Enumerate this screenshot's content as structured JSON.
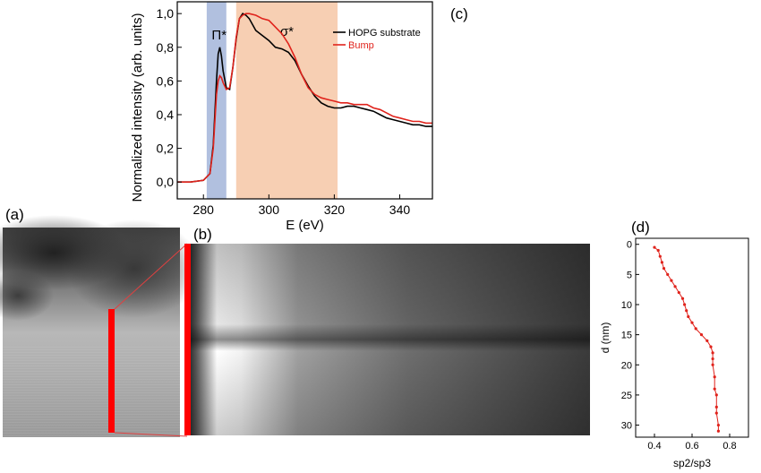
{
  "panels": {
    "a": "(a)",
    "b": "(b)",
    "c": "(c)",
    "d": "(d)"
  },
  "colors": {
    "hopg": "#000000",
    "bump": "#e0231c",
    "pi_band": "#a8b9dc",
    "sigma_band": "#f6c7a6",
    "marker": "#ff0000"
  },
  "chart_data": [
    {
      "type": "line",
      "xlabel": "E (eV)",
      "ylabel": "Normalized intensity (arb. units)",
      "xlim": [
        272,
        350
      ],
      "ylim": [
        -0.1,
        1.07
      ],
      "xticks": [
        "280",
        "300",
        "320",
        "340"
      ],
      "yticks": [
        "0,0",
        "0,2",
        "0,4",
        "0,6",
        "0,8",
        "1,0"
      ],
      "x_tick_values": [
        280,
        300,
        320,
        340
      ],
      "y_tick_values": [
        0,
        0.2,
        0.4,
        0.6,
        0.8,
        1.0
      ],
      "legend_position": "top-right",
      "bands": [
        {
          "label": "Π*",
          "range": [
            281,
            287
          ]
        },
        {
          "label": "σ*",
          "range": [
            290,
            321
          ]
        }
      ],
      "series": [
        {
          "name": "HOPG substrate",
          "x": [
            272,
            276,
            280,
            282,
            283,
            284,
            284.5,
            285,
            285.5,
            286,
            287,
            288,
            289,
            290,
            291,
            292,
            293,
            294,
            296,
            298,
            300,
            302,
            304,
            306,
            308,
            310,
            312,
            314,
            316,
            318,
            320,
            322,
            324,
            326,
            328,
            330,
            332,
            334,
            336,
            338,
            340,
            342,
            344,
            346,
            348,
            350
          ],
          "y": [
            0.0,
            0.0,
            0.01,
            0.05,
            0.22,
            0.6,
            0.76,
            0.8,
            0.75,
            0.66,
            0.56,
            0.55,
            0.68,
            0.85,
            0.97,
            1.0,
            0.99,
            0.97,
            0.9,
            0.87,
            0.84,
            0.8,
            0.79,
            0.77,
            0.72,
            0.64,
            0.57,
            0.51,
            0.47,
            0.45,
            0.44,
            0.44,
            0.45,
            0.45,
            0.44,
            0.43,
            0.42,
            0.4,
            0.38,
            0.37,
            0.36,
            0.35,
            0.34,
            0.34,
            0.33,
            0.33
          ]
        },
        {
          "name": "Bump",
          "x": [
            272,
            276,
            280,
            282,
            283,
            284,
            284.5,
            285,
            285.5,
            286,
            287,
            288,
            289,
            290,
            291,
            292,
            293,
            294,
            296,
            298,
            300,
            302,
            304,
            306,
            308,
            310,
            312,
            314,
            316,
            318,
            320,
            322,
            324,
            326,
            328,
            330,
            332,
            334,
            336,
            338,
            340,
            342,
            344,
            346,
            348,
            350
          ],
          "y": [
            0.0,
            0.0,
            0.01,
            0.05,
            0.2,
            0.52,
            0.6,
            0.63,
            0.62,
            0.59,
            0.55,
            0.56,
            0.68,
            0.86,
            0.97,
            0.99,
            1.0,
            1.0,
            0.99,
            0.97,
            0.96,
            0.92,
            0.88,
            0.82,
            0.74,
            0.64,
            0.56,
            0.52,
            0.5,
            0.49,
            0.48,
            0.47,
            0.47,
            0.46,
            0.46,
            0.46,
            0.44,
            0.43,
            0.41,
            0.39,
            0.38,
            0.37,
            0.36,
            0.36,
            0.35,
            0.35
          ]
        }
      ]
    },
    {
      "type": "scatter",
      "xlabel": "sp2/sp3",
      "ylabel": "d (nm)",
      "xlim": [
        0.3,
        0.9
      ],
      "ylim": [
        32,
        -1
      ],
      "xticks": [
        "0.4",
        "0.6",
        "0.8"
      ],
      "yticks": [
        "0",
        "5",
        "10",
        "15",
        "20",
        "25",
        "30"
      ],
      "x_tick_values": [
        0.4,
        0.6,
        0.8
      ],
      "y_tick_values": [
        0,
        5,
        10,
        15,
        20,
        25,
        30
      ],
      "series": [
        {
          "name": "",
          "x": [
            0.4,
            0.42,
            0.43,
            0.44,
            0.45,
            0.47,
            0.49,
            0.51,
            0.53,
            0.55,
            0.56,
            0.57,
            0.58,
            0.6,
            0.62,
            0.65,
            0.68,
            0.7,
            0.71,
            0.71,
            0.71,
            0.72,
            0.72,
            0.73,
            0.73,
            0.73,
            0.74,
            0.74
          ],
          "y": [
            0.5,
            1.0,
            2.0,
            3.0,
            4.0,
            5.0,
            6.0,
            7.0,
            8.0,
            9.0,
            10.0,
            11.0,
            12.0,
            13.0,
            14.0,
            15.0,
            16.0,
            17.0,
            18.0,
            19.0,
            20.0,
            22.0,
            24.0,
            25.0,
            27.0,
            28.0,
            30.0,
            31.0
          ]
        }
      ]
    }
  ]
}
